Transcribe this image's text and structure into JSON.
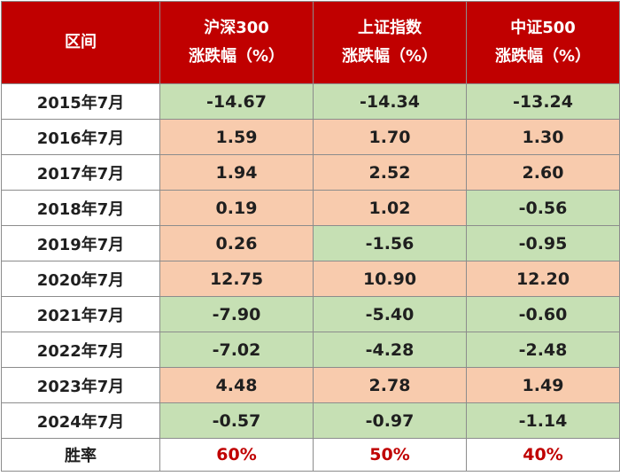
{
  "chart_data": {
    "type": "table",
    "header": {
      "first": "区间",
      "columns": [
        {
          "line1": "沪深300",
          "line2": "涨跌幅（%）"
        },
        {
          "line1": "上证指数",
          "line2": "涨跌幅（%）"
        },
        {
          "line1": "中证500",
          "line2": "涨跌幅（%）"
        }
      ]
    },
    "rows": [
      {
        "period": "2015年7月",
        "values": [
          "-14.67",
          "-14.34",
          "-13.24"
        ]
      },
      {
        "period": "2016年7月",
        "values": [
          "1.59",
          "1.70",
          "1.30"
        ]
      },
      {
        "period": "2017年7月",
        "values": [
          "1.94",
          "2.52",
          "2.60"
        ]
      },
      {
        "period": "2018年7月",
        "values": [
          "0.19",
          "1.02",
          "-0.56"
        ]
      },
      {
        "period": "2019年7月",
        "values": [
          "0.26",
          "-1.56",
          "-0.95"
        ]
      },
      {
        "period": "2020年7月",
        "values": [
          "12.75",
          "10.90",
          "12.20"
        ]
      },
      {
        "period": "2021年7月",
        "values": [
          "-7.90",
          "-5.40",
          "-0.60"
        ]
      },
      {
        "period": "2022年7月",
        "values": [
          "-7.02",
          "-4.28",
          "-2.48"
        ]
      },
      {
        "period": "2023年7月",
        "values": [
          "4.48",
          "2.78",
          "1.49"
        ]
      },
      {
        "period": "2024年7月",
        "values": [
          "-0.57",
          "-0.97",
          "-1.14"
        ]
      }
    ],
    "win_rate": {
      "label": "胜率",
      "values": [
        "60%",
        "50%",
        "40%"
      ]
    }
  },
  "colors": {
    "header_bg": "#c00000",
    "positive_bg": "#f8cbad",
    "negative_bg": "#c6e0b4",
    "win_rate_text": "#c00000"
  }
}
